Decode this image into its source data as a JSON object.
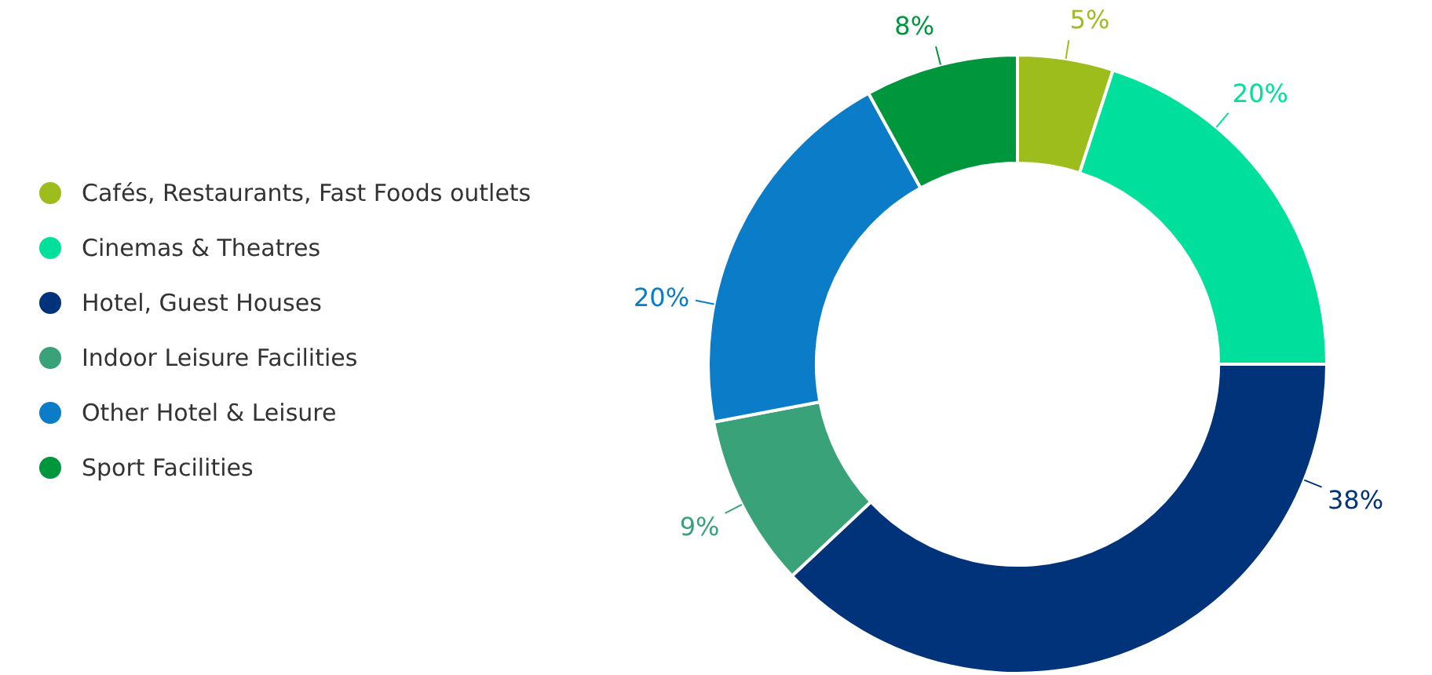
{
  "chart_data": {
    "type": "donut",
    "categories": [
      "Cafés, Restaurants, Fast Foods outlets",
      "Cinemas & Theatres",
      "Hotel, Guest Houses",
      "Indoor Leisure Facilities",
      "Other Hotel & Leisure",
      "Sport Facilities"
    ],
    "values": [
      5,
      20,
      38,
      9,
      20,
      8
    ],
    "colors": [
      "#9cbd1c",
      "#00e09c",
      "#00337a",
      "#3aa278",
      "#0b7cc8",
      "#00963c"
    ],
    "value_labels": [
      "5%",
      "20%",
      "38%",
      "9%",
      "20%",
      "8%"
    ],
    "legend": "left"
  }
}
